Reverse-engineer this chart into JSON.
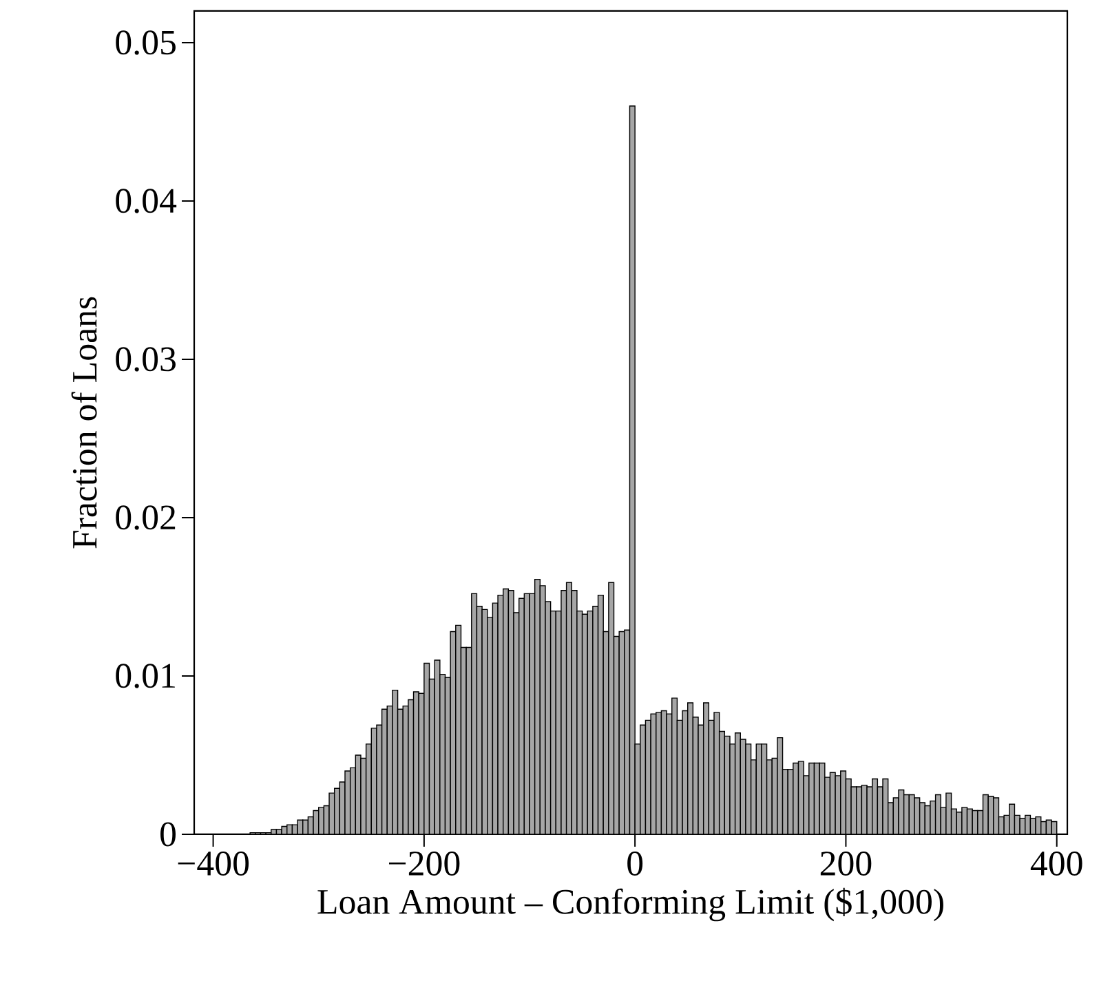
{
  "chart_data": {
    "type": "histogram",
    "xlabel": "Loan Amount – Conforming Limit ($1,000)",
    "ylabel": "Fraction of Loans",
    "color": "#a6a6a6",
    "bins": [
      -400,
      -395,
      -390,
      -385,
      -380,
      -375,
      -370,
      -365,
      -360,
      -355,
      -350,
      -345,
      -340,
      -335,
      -330,
      -325,
      -320,
      -315,
      -310,
      -305,
      -300,
      -295,
      -290,
      -285,
      -280,
      -275,
      -270,
      -265,
      -260,
      -255,
      -250,
      -245,
      -240,
      -235,
      -230,
      -225,
      -220,
      -215,
      -210,
      -205,
      -200,
      -195,
      -190,
      -185,
      -180,
      -175,
      -170,
      -165,
      -160,
      -155,
      -150,
      -145,
      -140,
      -135,
      -130,
      -125,
      -120,
      -115,
      -110,
      -105,
      -100,
      -95,
      -90,
      -85,
      -80,
      -75,
      -70,
      -65,
      -60,
      -55,
      -50,
      -45,
      -40,
      -35,
      -30,
      -25,
      -20,
      -15,
      -10,
      -5,
      0,
      5,
      10,
      15,
      20,
      25,
      30,
      35,
      40,
      45,
      50,
      55,
      60,
      65,
      70,
      75,
      80,
      85,
      90,
      95,
      100,
      105,
      110,
      115,
      120,
      125,
      130,
      135,
      140,
      145,
      150,
      155,
      160,
      165,
      170,
      175,
      180,
      185,
      190,
      195,
      200,
      205,
      210,
      215,
      220,
      225,
      230,
      235,
      240,
      245,
      250,
      255,
      260,
      265,
      270,
      275,
      280,
      285,
      290,
      295,
      300,
      305,
      310,
      315,
      320,
      325,
      330,
      335,
      340,
      345,
      350,
      355,
      360,
      365,
      370,
      375,
      380,
      385,
      390,
      395,
      400
    ],
    "values": [
      0,
      0,
      0,
      0,
      0,
      0,
      0,
      0.0001,
      0.0001,
      0.0001,
      0.0001,
      0.0003,
      0.0003,
      0.0005,
      0.0006,
      0.0006,
      0.0009,
      0.0009,
      0.0011,
      0.0015,
      0.0017,
      0.0018,
      0.0026,
      0.0029,
      0.0033,
      0.004,
      0.0042,
      0.005,
      0.0048,
      0.0057,
      0.0067,
      0.0069,
      0.0079,
      0.0081,
      0.0091,
      0.0079,
      0.0081,
      0.0085,
      0.009,
      0.0089,
      0.0108,
      0.0098,
      0.011,
      0.0101,
      0.0099,
      0.0128,
      0.0132,
      0.0118,
      0.0118,
      0.0152,
      0.0144,
      0.0142,
      0.0137,
      0.0146,
      0.0151,
      0.0155,
      0.0154,
      0.014,
      0.0149,
      0.0152,
      0.0152,
      0.0161,
      0.0157,
      0.0147,
      0.0141,
      0.0141,
      0.0154,
      0.0159,
      0.0154,
      0.0141,
      0.0139,
      0.0141,
      0.0144,
      0.0151,
      0.0128,
      0.0159,
      0.0125,
      0.0128,
      0.0129,
      0.046,
      0.0057,
      0.0069,
      0.0072,
      0.0076,
      0.0077,
      0.0078,
      0.0076,
      0.0086,
      0.0072,
      0.0078,
      0.0083,
      0.0074,
      0.0069,
      0.0083,
      0.0072,
      0.0077,
      0.0065,
      0.0062,
      0.0057,
      0.0064,
      0.006,
      0.0057,
      0.0047,
      0.0057,
      0.0057,
      0.0047,
      0.0048,
      0.0061,
      0.0041,
      0.0041,
      0.0045,
      0.0046,
      0.0037,
      0.0045,
      0.0045,
      0.0045,
      0.0036,
      0.0039,
      0.0037,
      0.004,
      0.0035,
      0.003,
      0.003,
      0.0031,
      0.003,
      0.0035,
      0.003,
      0.0035,
      0.002,
      0.0023,
      0.0028,
      0.0025,
      0.0025,
      0.0023,
      0.002,
      0.0018,
      0.0021,
      0.0025,
      0.0017,
      0.0026,
      0.0016,
      0.0014,
      0.0017,
      0.0016,
      0.0015,
      0.0015,
      0.0025,
      0.0024,
      0.0023,
      0.0011,
      0.0012,
      0.0019,
      0.0012,
      0.001,
      0.0012,
      0.001,
      0.0011,
      0.0008,
      0.0009,
      0.0008
    ],
    "xlim": [
      -418,
      410
    ],
    "ylim": [
      0,
      0.052
    ],
    "xticks": [
      {
        "value": -400,
        "label": "−400"
      },
      {
        "value": -200,
        "label": "−200"
      },
      0,
      200,
      400
    ],
    "yticks": [
      0,
      0.01,
      0.02,
      0.03,
      0.04,
      0.05
    ]
  }
}
